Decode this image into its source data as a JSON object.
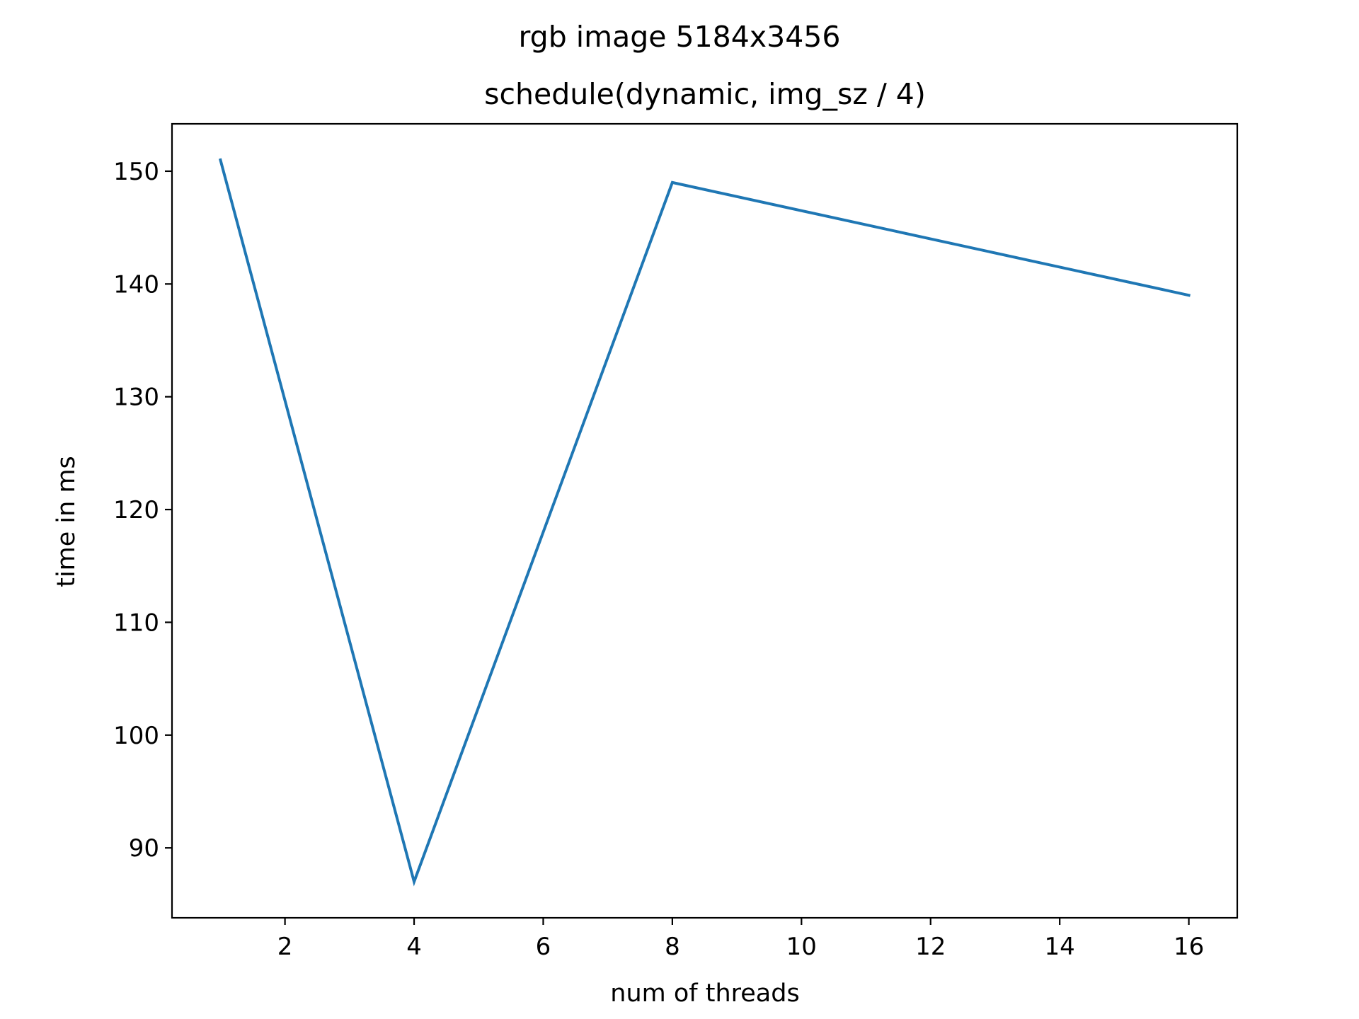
{
  "chart_data": {
    "type": "line",
    "suptitle": "rgb image 5184x3456",
    "title": "schedule(dynamic, img_sz / 4)",
    "xlabel": "num of threads",
    "ylabel": "time in ms",
    "x": [
      1,
      4,
      8,
      16
    ],
    "series": [
      {
        "values": [
          151,
          87,
          149,
          139
        ],
        "color": "#1f77b4"
      }
    ],
    "xlim": [
      0.25,
      16.75
    ],
    "ylim": [
      83.8,
      154.2
    ],
    "xticks": [
      2,
      4,
      6,
      8,
      10,
      12,
      14,
      16
    ],
    "yticks": [
      90,
      100,
      110,
      120,
      130,
      140,
      150
    ],
    "grid": false,
    "legend": "none"
  }
}
